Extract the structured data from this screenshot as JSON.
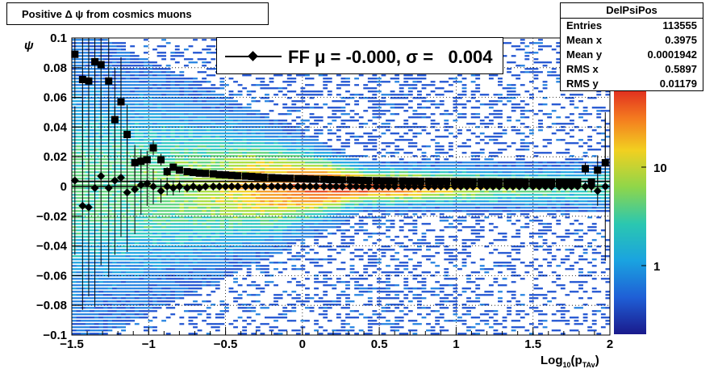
{
  "title": "Positive Δ ψ from cosmics muons",
  "stats": {
    "name": "DelPsiPos",
    "rows": [
      {
        "label": "Entries",
        "value": "113555"
      },
      {
        "label": "Mean x",
        "value": "0.3975"
      },
      {
        "label": "Mean y",
        "value": "0.0001942"
      },
      {
        "label": "RMS x",
        "value": "0.5897"
      },
      {
        "label": "RMS y",
        "value": "0.01179"
      }
    ]
  },
  "legend": {
    "text": "FF μ = -0.000, σ =   0.004"
  },
  "axes": {
    "ylabel": "ψ",
    "xlabel_main": "Log",
    "xlabel_sub1": "10",
    "xlabel_mid": "(p",
    "xlabel_sub2": "TAv",
    "xlabel_end": ")"
  },
  "chart_data": {
    "type": "heatmap",
    "xlim": [
      -1.5,
      2
    ],
    "ylim": [
      -0.1,
      0.1
    ],
    "x_ticks": [
      "−1.5",
      "−1",
      "−0.5",
      "0",
      "0.5",
      "1",
      "1.5",
      "2"
    ],
    "x_tick_values": [
      -1.5,
      -1,
      -0.5,
      0,
      0.5,
      1,
      1.5,
      2
    ],
    "y_ticks": [
      "−0.1",
      "−0.08",
      "−0.06",
      "−0.04",
      "−0.02",
      "0",
      "0.02",
      "0.04",
      "0.06",
      "0.08",
      "0.1"
    ],
    "y_tick_values": [
      -0.1,
      -0.08,
      -0.06,
      -0.04,
      -0.02,
      0,
      0.02,
      0.04,
      0.06,
      0.08,
      0.1
    ],
    "colorbar_labels": [
      "10",
      "1"
    ],
    "colorbar_values": [
      10,
      1
    ],
    "grid": true,
    "series": [
      {
        "marker": "square",
        "x": [
          -1.48,
          -1.43,
          -1.39,
          -1.35,
          -1.31,
          -1.26,
          -1.22,
          -1.18,
          -1.14,
          -1.09,
          -1.05,
          -1.01,
          -0.97,
          -0.92,
          -0.88,
          -0.84,
          -0.8,
          -0.75,
          -0.71,
          -0.67,
          -0.63,
          -0.58,
          -0.54,
          -0.5,
          -0.46,
          -0.42,
          -0.37,
          -0.33,
          -0.29,
          -0.25,
          -0.2,
          -0.16,
          -0.12,
          -0.08,
          -0.03,
          0.01,
          0.05,
          0.09,
          0.14,
          0.18,
          0.22,
          0.26,
          0.31,
          0.35,
          0.39,
          0.43,
          0.48,
          0.52,
          0.56,
          0.6,
          0.65,
          0.69,
          0.73,
          0.77,
          0.82,
          0.86,
          0.9,
          0.94,
          0.99,
          1.03,
          1.07,
          1.11,
          1.16,
          1.2,
          1.24,
          1.28,
          1.33,
          1.37,
          1.41,
          1.45,
          1.5,
          1.54,
          1.58,
          1.62,
          1.67,
          1.71,
          1.75,
          1.79,
          1.84,
          1.88,
          1.92,
          1.97
        ],
        "y": [
          0.089,
          0.072,
          0.071,
          0.084,
          0.082,
          0.071,
          0.045,
          0.057,
          0.035,
          0.016,
          0.017,
          0.018,
          0.026,
          0.018,
          0.01,
          0.013,
          0.011,
          0.01,
          0.0095,
          0.009,
          0.0088,
          0.0085,
          0.008,
          0.0078,
          0.0075,
          0.0072,
          0.007,
          0.0068,
          0.0065,
          0.0062,
          0.006,
          0.0058,
          0.0056,
          0.0055,
          0.0053,
          0.0052,
          0.005,
          0.0049,
          0.0048,
          0.0046,
          0.0045,
          0.0044,
          0.0043,
          0.0042,
          0.0041,
          0.004,
          0.0039,
          0.0038,
          0.0038,
          0.0037,
          0.0037,
          0.0036,
          0.0036,
          0.0035,
          0.0035,
          0.0034,
          0.0034,
          0.0034,
          0.0033,
          0.0033,
          0.0033,
          0.0032,
          0.0032,
          0.0032,
          0.0032,
          0.0031,
          0.0031,
          0.0031,
          0.0031,
          0.003,
          0.003,
          0.003,
          0.003,
          0.003,
          0.003,
          0.003,
          0.003,
          0.003,
          0.012,
          0.003,
          0.011,
          0.016
        ],
        "yerr": [
          0.03,
          0.06,
          0.045,
          0.06,
          0.05,
          0.04,
          0.035,
          0.03,
          0.02,
          0.01,
          0.008,
          0.006,
          0.005,
          0.004,
          0.003,
          0.002,
          0.002,
          0.0015,
          0.0012,
          0.001,
          0.001,
          0.001,
          0.001,
          0.001,
          0.001,
          0.001,
          0.001,
          0.001,
          0.001,
          0.001,
          0.001,
          0.001,
          0.001,
          0.001,
          0.001,
          0.001,
          0.001,
          0.001,
          0.001,
          0.001,
          0.001,
          0.001,
          0.001,
          0.001,
          0.001,
          0.001,
          0.001,
          0.001,
          0.001,
          0.001,
          0.001,
          0.001,
          0.001,
          0.001,
          0.001,
          0.001,
          0.001,
          0.001,
          0.001,
          0.001,
          0.001,
          0.001,
          0.001,
          0.001,
          0.001,
          0.001,
          0.001,
          0.001,
          0.001,
          0.001,
          0.001,
          0.001,
          0.001,
          0.001,
          0.001,
          0.001,
          0.001,
          0.001,
          0.004,
          0.002,
          0.01,
          0.03
        ]
      },
      {
        "marker": "diamond",
        "x": [
          -1.48,
          -1.43,
          -1.39,
          -1.35,
          -1.31,
          -1.26,
          -1.22,
          -1.18,
          -1.14,
          -1.09,
          -1.05,
          -1.01,
          -0.97,
          -0.92,
          -0.88,
          -0.84,
          -0.8,
          -0.75,
          -0.71,
          -0.67,
          -0.63,
          -0.58,
          -0.54,
          -0.5,
          -0.46,
          -0.42,
          -0.37,
          -0.33,
          -0.29,
          -0.25,
          -0.2,
          -0.16,
          -0.12,
          -0.08,
          -0.03,
          0.01,
          0.05,
          0.09,
          0.14,
          0.18,
          0.22,
          0.26,
          0.31,
          0.35,
          0.39,
          0.43,
          0.48,
          0.52,
          0.56,
          0.6,
          0.65,
          0.69,
          0.73,
          0.77,
          0.82,
          0.86,
          0.9,
          0.94,
          0.99,
          1.03,
          1.07,
          1.11,
          1.16,
          1.2,
          1.24,
          1.28,
          1.33,
          1.37,
          1.41,
          1.45,
          1.5,
          1.54,
          1.58,
          1.62,
          1.67,
          1.71,
          1.75,
          1.79,
          1.84,
          1.88,
          1.92,
          1.97
        ],
        "y": [
          0.004,
          -0.013,
          -0.014,
          -0.001,
          0.007,
          -0.001,
          0.004,
          0.006,
          -0.004,
          -0.002,
          0.001,
          0.002,
          0.0,
          -0.003,
          0.0,
          -0.001,
          0.0,
          -0.001,
          0.0,
          -0.001,
          0.0,
          0.0,
          0.0,
          0.0,
          0.0,
          0.0,
          0.0,
          0.0,
          0.0,
          0.0,
          0.0,
          0.0,
          0.0,
          0.0,
          0.0,
          0.0,
          0.0,
          0.0,
          0.0,
          0.0,
          0.0,
          0.0,
          0.0,
          0.0,
          0.0,
          0.0,
          0.0,
          0.0,
          0.0,
          0.0,
          0.0,
          0.0,
          0.0,
          0.0,
          0.0,
          0.0,
          0.0,
          0.0,
          0.0,
          0.0,
          0.0,
          0.0,
          0.0,
          0.0,
          0.0,
          0.0,
          0.0,
          0.0,
          0.0,
          0.0,
          0.0,
          0.0,
          0.0,
          0.0,
          0.0,
          0.0,
          0.0,
          0.0,
          0.0,
          0.0,
          -0.003,
          0.0
        ],
        "yerr": [
          0.05,
          0.07,
          0.06,
          0.08,
          0.06,
          0.06,
          0.05,
          0.04,
          0.04,
          0.03,
          0.02,
          0.015,
          0.012,
          0.008,
          0.006,
          0.005,
          0.004,
          0.003,
          0.003,
          0.002,
          0.002,
          0.002,
          0.002,
          0.002,
          0.002,
          0.002,
          0.002,
          0.002,
          0.002,
          0.002,
          0.002,
          0.002,
          0.002,
          0.002,
          0.002,
          0.002,
          0.002,
          0.002,
          0.002,
          0.002,
          0.002,
          0.002,
          0.002,
          0.002,
          0.002,
          0.002,
          0.002,
          0.002,
          0.002,
          0.002,
          0.002,
          0.002,
          0.002,
          0.002,
          0.002,
          0.002,
          0.002,
          0.002,
          0.002,
          0.002,
          0.002,
          0.002,
          0.002,
          0.002,
          0.002,
          0.002,
          0.002,
          0.002,
          0.002,
          0.002,
          0.002,
          0.002,
          0.002,
          0.002,
          0.002,
          0.002,
          0.002,
          0.002,
          0.003,
          0.004,
          0.01,
          0.05
        ]
      }
    ]
  }
}
